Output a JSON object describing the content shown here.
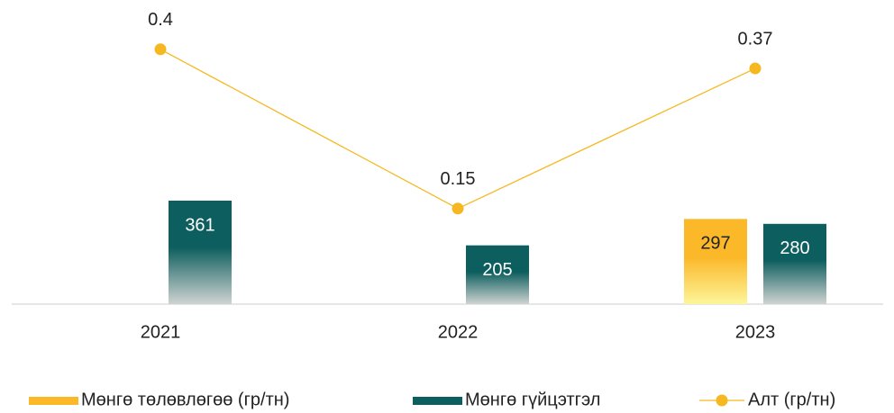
{
  "chart_data": {
    "type": "bar",
    "categories": [
      "2021",
      "2022",
      "2023"
    ],
    "ylim": [
      0,
      1000
    ],
    "y2lim": [
      0,
      0.45
    ],
    "series": [
      {
        "name": "Мөнгө төлөвлөгөө (гр/тн)",
        "color": "#fbb829",
        "values": [
          null,
          null,
          297
        ]
      },
      {
        "name": "Мөнгө гүйцэтгэл",
        "color": "#0d5e5e",
        "values": [
          361,
          205,
          280
        ]
      },
      {
        "name": "Алт (гр/тн)",
        "color": "#f5b820",
        "type": "line",
        "axis": "y2",
        "values": [
          0.4,
          0.15,
          0.37
        ]
      }
    ]
  }
}
